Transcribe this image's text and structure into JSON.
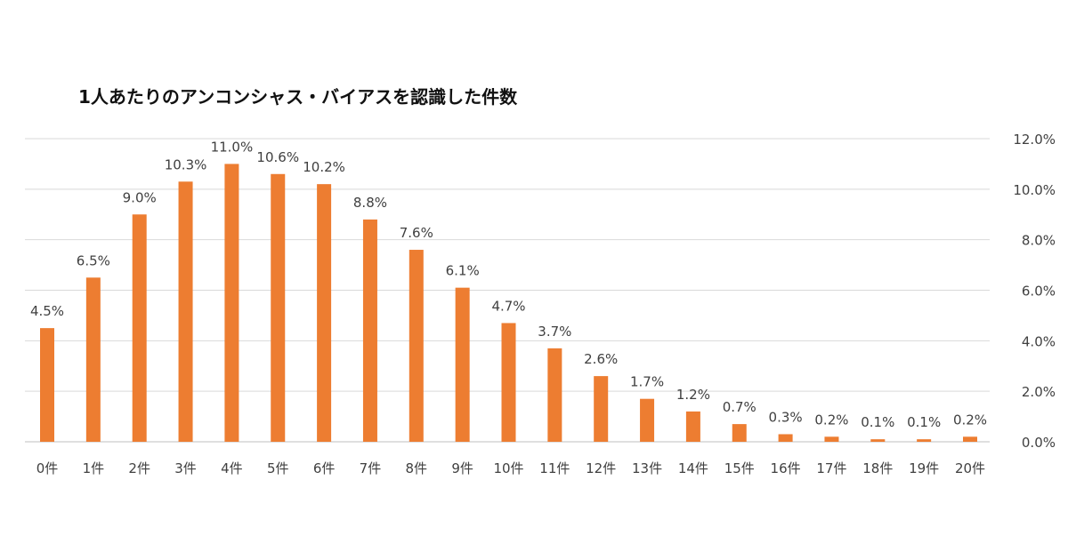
{
  "chart_data": {
    "type": "bar",
    "title": "1人あたりのアンコンシャス・バイアスを認識した件数",
    "categories": [
      "0件",
      "1件",
      "2件",
      "3件",
      "4件",
      "5件",
      "6件",
      "7件",
      "8件",
      "9件",
      "10件",
      "11件",
      "12件",
      "13件",
      "14件",
      "15件",
      "16件",
      "17件",
      "18件",
      "19件",
      "20件"
    ],
    "values": [
      4.5,
      6.5,
      9.0,
      10.3,
      11.0,
      10.6,
      10.2,
      8.8,
      7.6,
      6.1,
      4.7,
      3.7,
      2.6,
      1.7,
      1.2,
      0.7,
      0.3,
      0.2,
      0.1,
      0.1,
      0.2
    ],
    "data_labels": [
      "4.5%",
      "6.5%",
      "9.0%",
      "10.3%",
      "11.0%",
      "10.6%",
      "10.2%",
      "8.8%",
      "7.6%",
      "6.1%",
      "4.7%",
      "3.7%",
      "2.6%",
      "1.7%",
      "1.2%",
      "0.7%",
      "0.3%",
      "0.2%",
      "0.1%",
      "0.1%",
      "0.2%"
    ],
    "y_ticks": [
      0,
      2,
      4,
      6,
      8,
      10,
      12
    ],
    "y_tick_labels": [
      "0.0%",
      "2.0%",
      "4.0%",
      "6.0%",
      "8.0%",
      "10.0%",
      "12.0%"
    ],
    "ylim": [
      0,
      12
    ],
    "y_axis_side": "right",
    "grid": true,
    "xlabel": "",
    "ylabel": "",
    "bar_color": "#ed7d31",
    "grid_color": "#d9d9d9"
  }
}
